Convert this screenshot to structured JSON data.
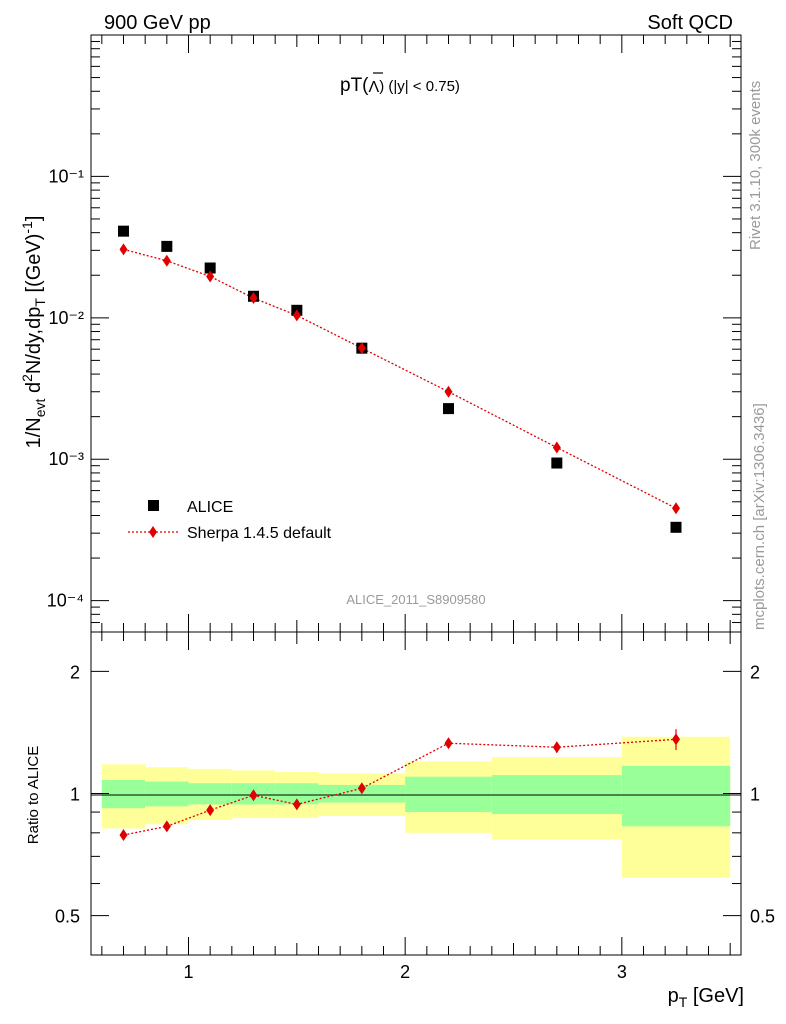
{
  "header": {
    "left": "900 GeV pp",
    "right": "Soft QCD"
  },
  "side_labels": {
    "rivet": "Rivet 3.1.10,  300k events",
    "source": "mcplots.cern.ch [arXiv:1306.3436]"
  },
  "watermark": "ALICE_2011_S8909580",
  "colors": {
    "data": "#000000",
    "mc": "#e00000",
    "band_inner": "#99ff99",
    "band_outer": "#ffff99",
    "side_text": "#9a9a9a"
  },
  "chart_data": [
    {
      "type": "scatter",
      "title_main": "pT(",
      "title_symbol": "Λ",
      "title_tail": ") (|y| < 0.75)",
      "ylabel": "1/N_evt d²N/dy,dp_T [(GeV)⁻¹]",
      "yscale": "log",
      "ylim": [
        6e-05,
        1
      ],
      "xlim": [
        0.55,
        3.55
      ],
      "yticks": [
        "10⁻⁴",
        "10⁻³",
        "10⁻²",
        "10⁻¹"
      ],
      "legend": {
        "position": "bottom-left",
        "data_label": "ALICE",
        "mc_label": "Sherpa 1.4.5 default"
      },
      "series": [
        {
          "name": "ALICE",
          "marker": "square",
          "x": [
            0.7,
            0.9,
            1.1,
            1.3,
            1.5,
            1.8,
            2.2,
            2.7,
            3.25
          ],
          "y": [
            0.041,
            0.032,
            0.0225,
            0.0142,
            0.0113,
            0.0061,
            0.00228,
            0.00094,
            0.00033
          ]
        },
        {
          "name": "Sherpa 1.4.5 default",
          "marker": "diamond",
          "x": [
            0.7,
            0.9,
            1.1,
            1.3,
            1.5,
            1.8,
            2.2,
            2.7,
            3.25
          ],
          "y": [
            0.0305,
            0.0253,
            0.0196,
            0.0138,
            0.0104,
            0.0061,
            0.003,
            0.00121,
            0.00045
          ]
        }
      ]
    },
    {
      "type": "scatter",
      "ylabel": "Ratio to ALICE",
      "xlabel": "p_T [GeV]",
      "yscale": "log",
      "ylim": [
        0.4,
        2.5
      ],
      "xlim": [
        0.55,
        3.55
      ],
      "xticks": [
        "1",
        "2",
        "3"
      ],
      "yticks": [
        "0.5",
        "1",
        "2"
      ],
      "bands": {
        "edges": [
          0.6,
          0.8,
          1.0,
          1.2,
          1.4,
          1.6,
          2.0,
          2.4,
          3.0,
          3.5
        ],
        "inner_lo": [
          0.92,
          0.93,
          0.94,
          0.94,
          0.94,
          0.95,
          0.9,
          0.89,
          0.83
        ],
        "inner_hi": [
          1.08,
          1.07,
          1.06,
          1.06,
          1.06,
          1.05,
          1.1,
          1.11,
          1.17
        ],
        "outer_lo": [
          0.82,
          0.84,
          0.86,
          0.87,
          0.87,
          0.88,
          0.8,
          0.77,
          0.62
        ],
        "outer_hi": [
          1.18,
          1.16,
          1.15,
          1.14,
          1.13,
          1.12,
          1.2,
          1.23,
          1.38
        ]
      },
      "series": [
        {
          "name": "Sherpa 1.4.5 default",
          "marker": "diamond",
          "x": [
            0.7,
            0.9,
            1.1,
            1.3,
            1.5,
            1.8,
            2.2,
            2.7,
            3.25
          ],
          "y": [
            0.79,
            0.83,
            0.91,
            0.99,
            0.94,
            1.03,
            1.33,
            1.3,
            1.36
          ],
          "err": [
            0.01,
            0.01,
            0.01,
            0.01,
            0.01,
            0.01,
            0.03,
            0.04,
            0.08
          ]
        }
      ]
    }
  ]
}
